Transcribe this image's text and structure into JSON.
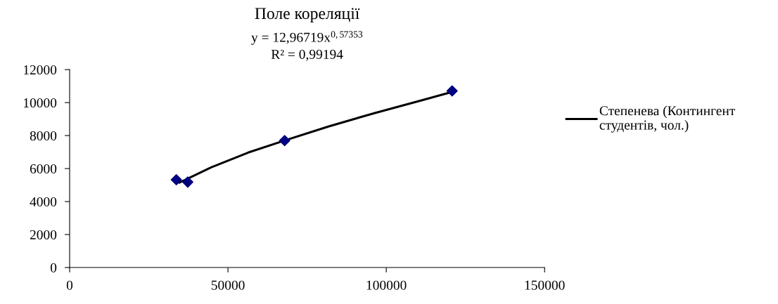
{
  "chart_data": {
    "type": "scatter",
    "title": "Поле кореляції",
    "annotations": [
      "y = 12,96719x$^{0,57353}$",
      "R² = 0,99194"
    ],
    "series": [
      {
        "color": "#000080",
        "marker": "diamond",
        "x": [
          33700,
          37300,
          67900,
          120800
        ],
        "values": [
          5320,
          5180,
          7700,
          10710
        ]
      },
      {
        "type": "line",
        "name": "Степенева (Контингент студентів, чол.)",
        "color": "#000000",
        "marker": "none",
        "line_style": "solid",
        "x": [
          34700,
          44700,
          56400,
          67900,
          81700,
          96400,
          111300,
          120800
        ],
        "values": [
          5150,
          6070,
          6970,
          7700,
          8550,
          9370,
          10140,
          10650
        ]
      }
    ],
    "xlim": [
      0,
      150000
    ],
    "xticks": [
      0,
      50000,
      100000,
      150000
    ],
    "ylim": [
      0,
      12000
    ],
    "yticks": [
      0,
      2000,
      4000,
      6000,
      8000,
      10000,
      12000
    ],
    "grid": false,
    "legend": "right"
  }
}
